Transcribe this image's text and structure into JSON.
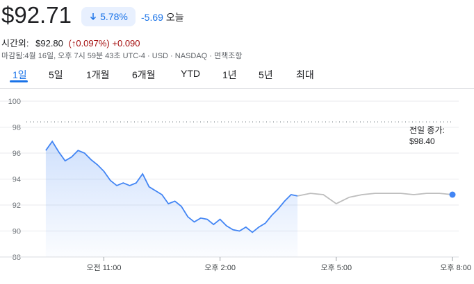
{
  "quote": {
    "price": "$92.71",
    "change_pct": "5.78%",
    "change_abs": "-5.69",
    "today_label": "오늘",
    "after_hours_label": "시간외:",
    "after_hours_price": "$92.80",
    "after_hours_pct": "(↑0.097%)",
    "after_hours_abs": "+0.090",
    "meta": "마감됨:4월 16일, 오후 7시 59분 43초 UTC-4 · USD · NASDAQ · 면책조항"
  },
  "colors": {
    "accent": "#1a73e8",
    "down_blue": "#4285f4",
    "after_hours_gray": "#bdbdbd",
    "red": "#a50e0e"
  },
  "tabs": [
    {
      "label": "1일",
      "active": true
    },
    {
      "label": "5일"
    },
    {
      "label": "1개월"
    },
    {
      "label": "6개월"
    },
    {
      "label": "YTD"
    },
    {
      "label": "1년"
    },
    {
      "label": "5년"
    },
    {
      "label": "최대"
    }
  ],
  "chart_data": {
    "type": "line",
    "ylim": [
      88,
      100
    ],
    "yticks": [
      100,
      98,
      96,
      94,
      92,
      90,
      88
    ],
    "x_range": [
      "09:00",
      "20:00"
    ],
    "xticks": [
      {
        "time": "11:00",
        "label": "오전 11:00"
      },
      {
        "time": "14:00",
        "label": "오후 2:00"
      },
      {
        "time": "17:00",
        "label": "오후 5:00"
      },
      {
        "time": "20:00",
        "label": "오후 8:00"
      }
    ],
    "previous_close": {
      "label": "전일 종가:",
      "value": 98.4,
      "value_label": "$98.40"
    },
    "grid": true,
    "series": [
      {
        "x": [
          "09:30",
          "09:40",
          "09:50",
          "10:00",
          "10:10",
          "10:20",
          "10:30",
          "10:40",
          "10:50",
          "11:00",
          "11:10",
          "11:20",
          "11:30",
          "11:40",
          "11:50",
          "12:00",
          "12:10",
          "12:20",
          "12:30",
          "12:40",
          "12:50",
          "13:00",
          "13:10",
          "13:20",
          "13:30",
          "13:40",
          "13:50",
          "14:00",
          "14:10",
          "14:20",
          "14:30",
          "14:40",
          "14:50",
          "15:00",
          "15:10",
          "15:20",
          "15:30",
          "15:40",
          "15:50",
          "16:00"
        ],
        "values": [
          96.2,
          96.9,
          96.1,
          95.4,
          95.7,
          96.2,
          96.0,
          95.5,
          95.1,
          94.6,
          93.9,
          93.5,
          93.7,
          93.5,
          93.7,
          94.4,
          93.4,
          93.1,
          92.8,
          92.1,
          92.3,
          91.9,
          91.1,
          90.7,
          91.0,
          90.9,
          90.5,
          90.9,
          90.4,
          90.1,
          90.0,
          90.3,
          89.9,
          90.3,
          90.6,
          91.2,
          91.7,
          92.3,
          92.8,
          92.7
        ]
      },
      {
        "x": [
          "16:00",
          "16:20",
          "16:40",
          "17:00",
          "17:20",
          "17:40",
          "18:00",
          "18:20",
          "18:40",
          "19:00",
          "19:20",
          "19:40",
          "20:00"
        ],
        "values": [
          92.7,
          92.9,
          92.8,
          92.1,
          92.6,
          92.8,
          92.9,
          92.9,
          92.9,
          92.8,
          92.9,
          92.9,
          92.8
        ]
      }
    ]
  }
}
